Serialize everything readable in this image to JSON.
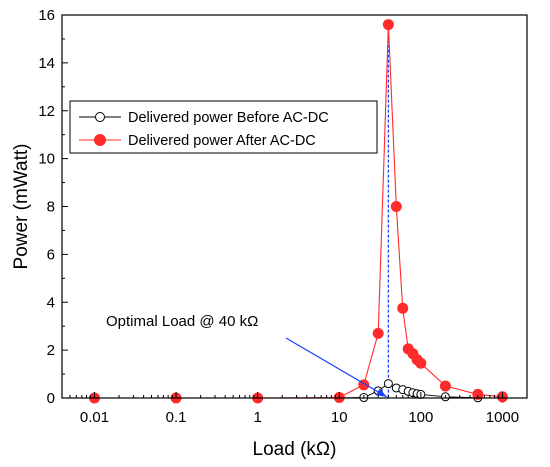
{
  "chart_data": {
    "type": "line",
    "title": "",
    "xlabel": "Load (kΩ)",
    "ylabel": "Power (mWatt)",
    "xscale": "log",
    "xlim": [
      0.004,
      2000
    ],
    "ylim": [
      0,
      16
    ],
    "x_ticks": [
      0.01,
      0.1,
      1,
      10,
      100,
      1000
    ],
    "x_tick_labels": [
      "0.01",
      "0.1",
      "1",
      "10",
      "100",
      "1000"
    ],
    "y_ticks": [
      0,
      2,
      4,
      6,
      8,
      10,
      12,
      14,
      16
    ],
    "y_tick_labels": [
      "0",
      "2",
      "4",
      "6",
      "8",
      "10",
      "12",
      "14",
      "16"
    ],
    "grid": false,
    "legend_position": "upper-left",
    "series": [
      {
        "name": "Delivered power Before AC-DC",
        "color": "#000000",
        "marker": "open-circle",
        "x": [
          0.01,
          0.1,
          1,
          10,
          20,
          30,
          40,
          50,
          60,
          70,
          80,
          90,
          100,
          200,
          500,
          1000
        ],
        "y": [
          0,
          0,
          0,
          0,
          0.02,
          0.3,
          0.6,
          0.42,
          0.35,
          0.28,
          0.22,
          0.18,
          0.15,
          0.05,
          0.01,
          0.0
        ]
      },
      {
        "name": "Delivered power After AC-DC",
        "color": "#ff2a2a",
        "marker": "filled-circle",
        "x": [
          0.01,
          0.1,
          1,
          10,
          20,
          30,
          40,
          50,
          60,
          70,
          80,
          90,
          100,
          200,
          500,
          1000
        ],
        "y": [
          0,
          0,
          0,
          0.02,
          0.55,
          2.7,
          15.6,
          8.0,
          3.75,
          2.05,
          1.85,
          1.6,
          1.45,
          0.5,
          0.15,
          0.05
        ]
      }
    ],
    "optimal_marker_x": 40,
    "annotation": {
      "text": "Optimal Load @ 40 kΩ",
      "target_x": 38,
      "target_y": 0.05,
      "color": "#1a3fff"
    }
  }
}
